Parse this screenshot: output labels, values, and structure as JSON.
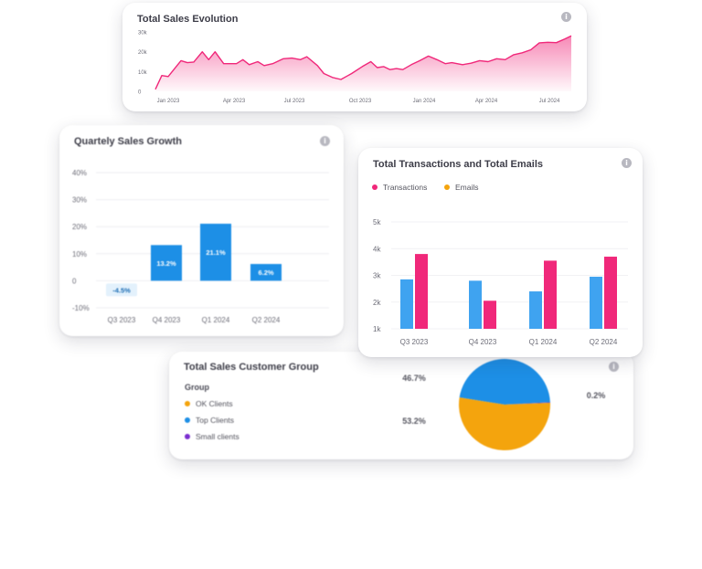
{
  "colors": {
    "pink": "#f0287a",
    "blue": "#1d8fe6",
    "light_blue": "#3fa3f0",
    "orange": "#f4a40d",
    "purple": "#7b2fd0",
    "grey_text": "#6d6d78"
  },
  "cards": {
    "sales_evolution": {
      "title": "Total Sales Evolution",
      "info": "i"
    },
    "quarterly_growth": {
      "title": "Quartely Sales Growth",
      "info": "i"
    },
    "transactions": {
      "title": "Total Transactions and Total Emails",
      "info": "i"
    },
    "customer_group": {
      "title": "Total Sales Customer Group",
      "info": "i",
      "legend_title": "Group"
    }
  },
  "chart_data": [
    {
      "id": "sales_evolution",
      "type": "area",
      "title": "Total Sales Evolution",
      "y_ticks": [
        "0",
        "10k",
        "20k",
        "30k"
      ],
      "ylim": [
        0,
        30000
      ],
      "x_ticks": [
        "Jan 2023",
        "Apr 2023",
        "Jul 2023",
        "Oct 2023",
        "Jan 2024",
        "Apr 2024",
        "Jul 2024"
      ],
      "xlim": [
        0,
        19.5
      ],
      "series": [
        {
          "values": [
            [
              0.0,
              1000
            ],
            [
              0.3,
              8000
            ],
            [
              0.6,
              7500
            ],
            [
              1.2,
              15500
            ],
            [
              1.5,
              14500
            ],
            [
              1.8,
              14800
            ],
            [
              2.2,
              20000
            ],
            [
              2.5,
              16000
            ],
            [
              2.8,
              20000
            ],
            [
              3.2,
              14000
            ],
            [
              3.8,
              14000
            ],
            [
              4.1,
              16000
            ],
            [
              4.4,
              13500
            ],
            [
              4.8,
              15000
            ],
            [
              5.1,
              13000
            ],
            [
              5.5,
              14000
            ],
            [
              6.0,
              16500
            ],
            [
              6.4,
              16800
            ],
            [
              6.8,
              16000
            ],
            [
              7.1,
              17500
            ],
            [
              7.6,
              13000
            ],
            [
              7.9,
              9000
            ],
            [
              8.3,
              7000
            ],
            [
              8.7,
              6000
            ],
            [
              9.2,
              9000
            ],
            [
              9.7,
              12500
            ],
            [
              10.1,
              15000
            ],
            [
              10.4,
              12000
            ],
            [
              10.7,
              12500
            ],
            [
              11.0,
              11000
            ],
            [
              11.3,
              11500
            ],
            [
              11.6,
              11000
            ],
            [
              12.0,
              13500
            ],
            [
              12.4,
              15500
            ],
            [
              12.8,
              17800
            ],
            [
              13.2,
              16000
            ],
            [
              13.6,
              14000
            ],
            [
              13.9,
              14500
            ],
            [
              14.4,
              13500
            ],
            [
              14.8,
              14200
            ],
            [
              15.2,
              15500
            ],
            [
              15.6,
              15000
            ],
            [
              16.0,
              16500
            ],
            [
              16.4,
              16000
            ],
            [
              16.8,
              18500
            ],
            [
              17.2,
              19500
            ],
            [
              17.6,
              21000
            ],
            [
              18.0,
              24500
            ],
            [
              18.4,
              24800
            ],
            [
              18.8,
              24600
            ],
            [
              19.2,
              26500
            ],
            [
              19.5,
              28000
            ]
          ]
        }
      ]
    },
    {
      "id": "quarterly_growth",
      "type": "bar",
      "title": "Quartely Sales Growth",
      "categories": [
        "Q3 2023",
        "Q4 2023",
        "Q1 2024",
        "Q2 2024"
      ],
      "values": [
        -4.5,
        13.2,
        21.1,
        6.2
      ],
      "labels": [
        "-4.5%",
        "13.2%",
        "21.1%",
        "6.2%"
      ],
      "y_ticks": [
        "40%",
        "30%",
        "20%",
        "10%",
        "0",
        "-10%"
      ],
      "ylim": [
        -10,
        40
      ]
    },
    {
      "id": "transactions",
      "type": "bar",
      "title": "Total Transactions and Total Emails",
      "categories": [
        "Q3 2023",
        "Q4 2023",
        "Q1 2024",
        "Q2 2024"
      ],
      "y_ticks": [
        "5k",
        "4k",
        "3k",
        "2k",
        "1k"
      ],
      "ylim": [
        1000,
        5000
      ],
      "legend": [
        "Transactions",
        "Emails"
      ],
      "series": [
        {
          "values": [
            2850,
            2800,
            2400,
            2950
          ],
          "color": "#3fa3f0"
        },
        {
          "values": [
            3800,
            2050,
            3550,
            3700
          ],
          "color": "#f0287a"
        }
      ]
    },
    {
      "id": "customer_group",
      "type": "pie",
      "title": "Total Sales Customer Group",
      "labels": [
        "OK Clients",
        "Top Clients",
        "Small clients"
      ],
      "values": [
        53.2,
        46.7,
        0.2
      ],
      "value_labels": [
        "53.2%",
        "46.7%",
        "0.2%"
      ],
      "colors": [
        "#f4a40d",
        "#1d8fe6",
        "#7b2fd0"
      ]
    }
  ]
}
